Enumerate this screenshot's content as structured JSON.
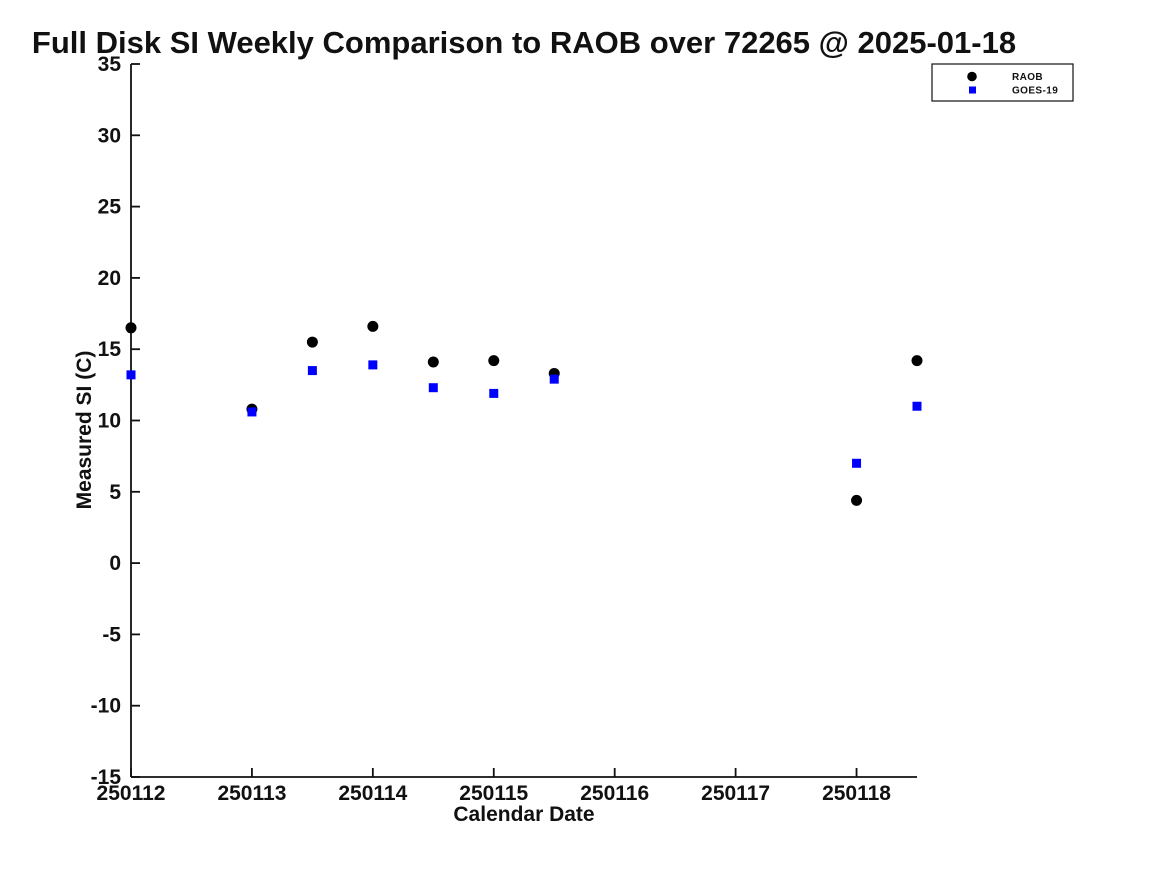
{
  "figure": {
    "background": "#ffffff",
    "text_color": "#111111"
  },
  "chart_data": {
    "type": "scatter",
    "title": "Full Disk SI Weekly Comparison to RAOB over 72265 @ 2025-01-18",
    "xlabel": "Calendar Date",
    "ylabel": "Measured SI (C)",
    "xlim": [
      250112,
      250118.5
    ],
    "ylim": [
      -15,
      35
    ],
    "x_ticks": [
      250112,
      250113,
      250114,
      250115,
      250116,
      250117,
      250118
    ],
    "y_ticks": [
      -15,
      -10,
      -5,
      0,
      5,
      10,
      15,
      20,
      25,
      30,
      35
    ],
    "grid": false,
    "legend_position": "upper right",
    "series": [
      {
        "name": "RAOB",
        "marker": "circle",
        "color": "#000000",
        "x": [
          250112,
          250113,
          250113.5,
          250114,
          250114.5,
          250115,
          250115.5,
          250118,
          250118.5
        ],
        "y": [
          16.5,
          10.8,
          15.5,
          16.6,
          14.1,
          14.2,
          13.3,
          4.4,
          14.2
        ]
      },
      {
        "name": "GOES-19",
        "marker": "square",
        "color": "#0000FF",
        "x": [
          250112,
          250113,
          250113.5,
          250114,
          250114.5,
          250115,
          250115.5,
          250118,
          250118.5
        ],
        "y": [
          13.2,
          10.6,
          13.5,
          13.9,
          12.3,
          11.9,
          12.9,
          7.0,
          11.0
        ]
      }
    ]
  }
}
